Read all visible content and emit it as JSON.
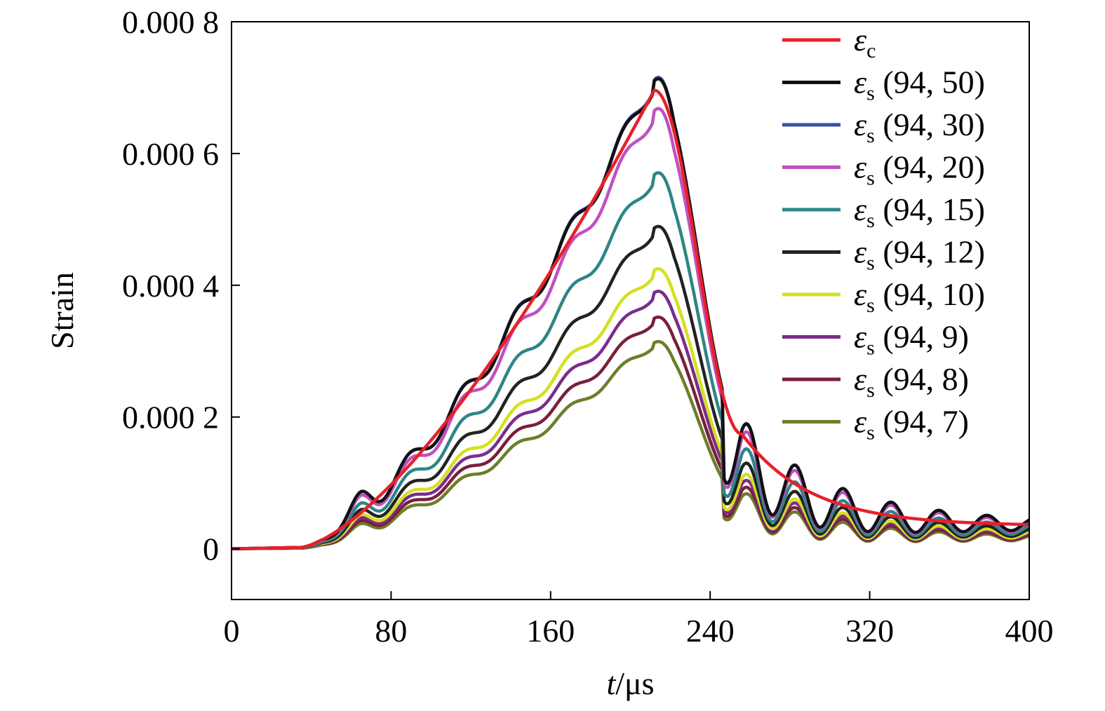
{
  "chart_data": {
    "type": "line",
    "xlabel_italic": "t",
    "xlabel_unit": "/μs",
    "ylabel": "Strain",
    "xlim": [
      0,
      400
    ],
    "ylim": [
      -7.7e-05,
      0.0008
    ],
    "x_ticks": [
      0,
      80,
      160,
      240,
      320,
      400
    ],
    "x_tick_labels": [
      "0",
      "80",
      "160",
      "240",
      "320",
      "400"
    ],
    "y_ticks": [
      0,
      0.0002,
      0.0004,
      0.0006,
      0.0008
    ],
    "y_tick_labels": [
      "0",
      "0.000 2",
      "0.000 4",
      "0.000 6",
      "0.000 8"
    ],
    "legend_position": "top-right",
    "series": [
      {
        "symbol": "ε",
        "sub": "c",
        "suffix": "",
        "color": "#e8202a",
        "peak": 0.000696,
        "kind": "ref"
      },
      {
        "symbol": "ε",
        "sub": "s",
        "suffix": " (94, 50)",
        "color": "#111111",
        "peak": 0.00071,
        "kind": "sensor"
      },
      {
        "symbol": "ε",
        "sub": "s",
        "suffix": " (94, 30)",
        "color": "#3a4ea5",
        "peak": 0.000712,
        "kind": "sensor"
      },
      {
        "symbol": "ε",
        "sub": "s",
        "suffix": " (94, 20)",
        "color": "#c050c0",
        "peak": 0.000665,
        "kind": "sensor"
      },
      {
        "symbol": "ε",
        "sub": "s",
        "suffix": " (94, 15)",
        "color": "#2f8585",
        "peak": 0.000568,
        "kind": "sensor"
      },
      {
        "symbol": "ε",
        "sub": "s",
        "suffix": " (94, 12)",
        "color": "#222222",
        "peak": 0.000487,
        "kind": "sensor"
      },
      {
        "symbol": "ε",
        "sub": "s",
        "suffix": " (94, 10)",
        "color": "#d4e020",
        "peak": 0.000423,
        "kind": "sensor"
      },
      {
        "symbol": "ε",
        "sub": "s",
        "suffix": " (94, 9)",
        "color": "#7a2d8c",
        "peak": 0.000389,
        "kind": "sensor"
      },
      {
        "symbol": "ε",
        "sub": "s",
        "suffix": " (94, 8)",
        "color": "#7a1f3c",
        "peak": 0.00035,
        "kind": "sensor"
      },
      {
        "symbol": "ε",
        "sub": "s",
        "suffix": " (94, 7)",
        "color": "#6e7d2a",
        "peak": 0.000313,
        "kind": "sensor"
      }
    ]
  }
}
